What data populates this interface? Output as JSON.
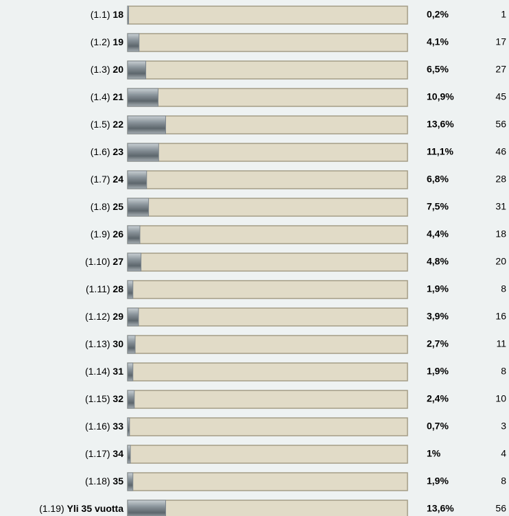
{
  "chart_data": {
    "type": "bar",
    "orientation": "horizontal",
    "codes": [
      "(1.1)",
      "(1.2)",
      "(1.3)",
      "(1.4)",
      "(1.5)",
      "(1.6)",
      "(1.7)",
      "(1.8)",
      "(1.9)",
      "(1.10)",
      "(1.11)",
      "(1.12)",
      "(1.13)",
      "(1.14)",
      "(1.15)",
      "(1.16)",
      "(1.17)",
      "(1.18)",
      "(1.19)"
    ],
    "categories": [
      "18",
      "19",
      "20",
      "21",
      "22",
      "23",
      "24",
      "25",
      "26",
      "27",
      "28",
      "29",
      "30",
      "31",
      "32",
      "33",
      "34",
      "35",
      "Yli 35 vuotta"
    ],
    "values": [
      0.2,
      4.1,
      6.5,
      10.9,
      13.6,
      11.1,
      6.8,
      7.5,
      4.4,
      4.8,
      1.9,
      3.9,
      2.7,
      1.9,
      2.4,
      0.7,
      1,
      1.9,
      13.6
    ],
    "value_labels": [
      "0,2%",
      "4,1%",
      "6,5%",
      "10,9%",
      "13,6%",
      "11,1%",
      "6,8%",
      "7,5%",
      "4,4%",
      "4,8%",
      "1,9%",
      "3,9%",
      "2,7%",
      "1,9%",
      "2,4%",
      "0,7%",
      "1%",
      "1,9%",
      "13,6%"
    ],
    "counts": [
      1,
      17,
      27,
      45,
      56,
      46,
      28,
      31,
      18,
      20,
      8,
      16,
      11,
      8,
      10,
      3,
      4,
      8,
      56
    ],
    "xlim": [
      0,
      100
    ],
    "color": "#7d868d",
    "track_color": "#e1dbc7"
  }
}
